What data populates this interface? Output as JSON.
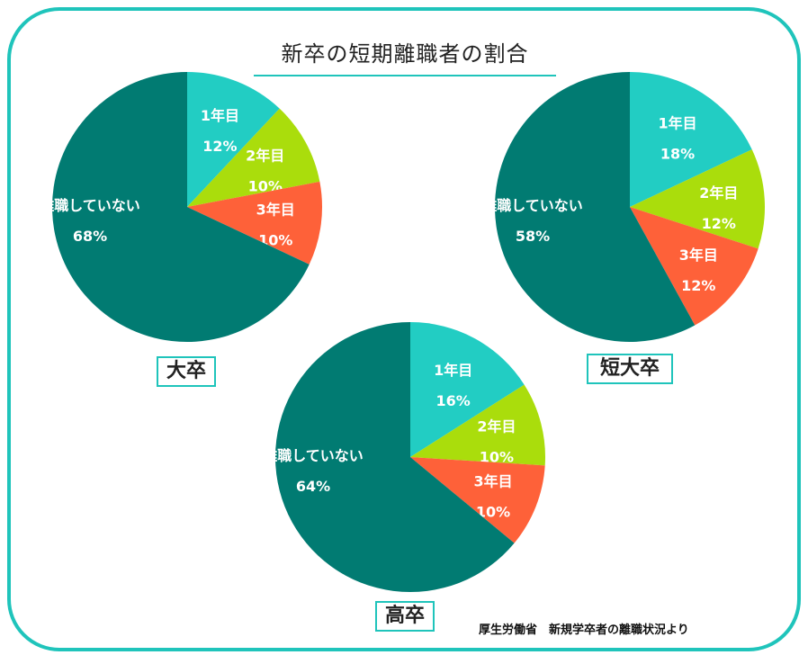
{
  "title": "新卒の短期離職者の割合",
  "source": "厚生労働省　新規学卒者の離職状況より",
  "colors": {
    "year1": "#22cdc3",
    "year2": "#aadd0c",
    "year3": "#fe6139",
    "stay": "#017b72",
    "frame": "#1fc4bb"
  },
  "chart_data": [
    {
      "type": "pie",
      "title": "大卒",
      "slices": [
        {
          "label": "1年目",
          "value": 12,
          "value_label": "12%",
          "color_key": "year1"
        },
        {
          "label": "2年目",
          "value": 10,
          "value_label": "10%",
          "color_key": "year2"
        },
        {
          "label": "3年目",
          "value": 10,
          "value_label": "10%",
          "color_key": "year3"
        },
        {
          "label": "離職していない",
          "value": 68,
          "value_label": "68%",
          "color_key": "stay"
        }
      ]
    },
    {
      "type": "pie",
      "title": "短大卒",
      "slices": [
        {
          "label": "1年目",
          "value": 18,
          "value_label": "18%",
          "color_key": "year1"
        },
        {
          "label": "2年目",
          "value": 12,
          "value_label": "12%",
          "color_key": "year2"
        },
        {
          "label": "3年目",
          "value": 12,
          "value_label": "12%",
          "color_key": "year3"
        },
        {
          "label": "離職していない",
          "value": 58,
          "value_label": "58%",
          "color_key": "stay"
        }
      ]
    },
    {
      "type": "pie",
      "title": "高卒",
      "slices": [
        {
          "label": "1年目",
          "value": 16,
          "value_label": "16%",
          "color_key": "year1"
        },
        {
          "label": "2年目",
          "value": 10,
          "value_label": "10%",
          "color_key": "year2"
        },
        {
          "label": "3年目",
          "value": 10,
          "value_label": "10%",
          "color_key": "year3"
        },
        {
          "label": "離職していない",
          "value": 64,
          "value_label": "64%",
          "color_key": "stay"
        }
      ]
    }
  ]
}
